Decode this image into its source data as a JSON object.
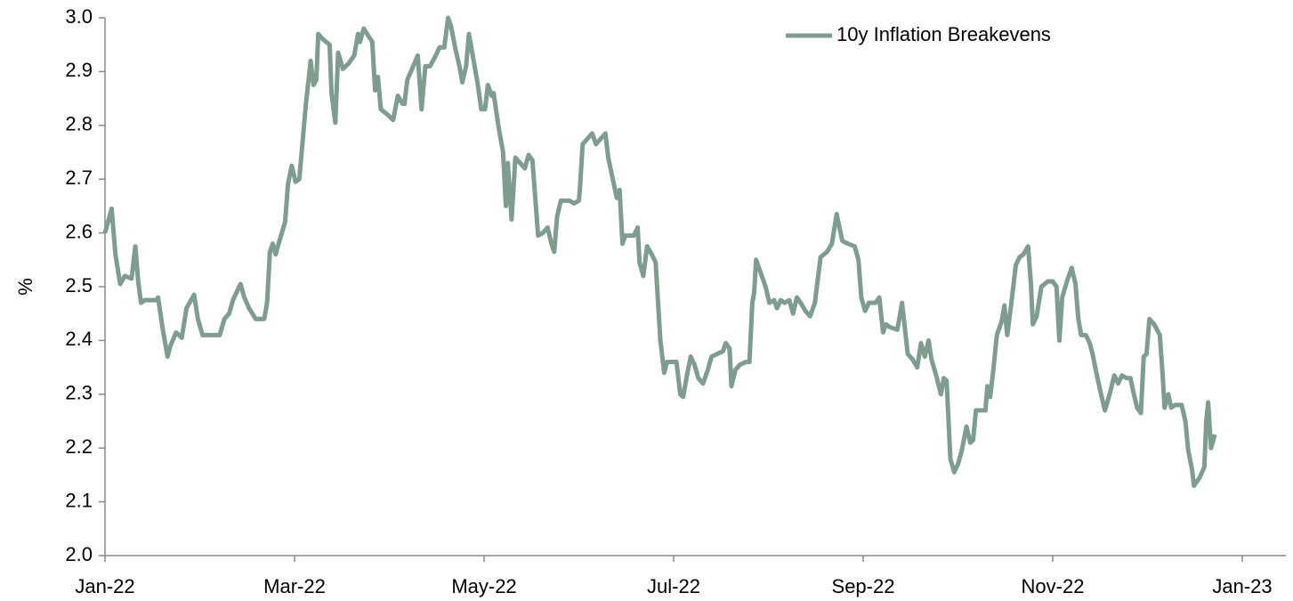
{
  "chart_data": {
    "type": "line",
    "y_label": "%",
    "xlim": [
      0,
      12.46
    ],
    "xticks": [
      {
        "value": 0,
        "label": "Jan-22"
      },
      {
        "value": 2,
        "label": "Mar-22"
      },
      {
        "value": 4,
        "label": "May-22"
      },
      {
        "value": 6,
        "label": "Jul-22"
      },
      {
        "value": 8,
        "label": "Sep-22"
      },
      {
        "value": 10,
        "label": "Nov-22"
      },
      {
        "value": 12,
        "label": "Jan-23"
      }
    ],
    "ylim": [
      2.0,
      3.0
    ],
    "yticks": [
      {
        "value": 2.0,
        "label": "2.0"
      },
      2.1,
      2.2,
      2.3,
      2.4,
      2.5,
      2.6,
      2.7,
      2.8,
      2.9,
      {
        "value": 3.0,
        "label": "3.0"
      }
    ],
    "grid": false,
    "legend": "upper right",
    "x": [
      0,
      0.07,
      0.11,
      0.16,
      0.21,
      0.28,
      0.32,
      0.35,
      0.38,
      0.42,
      0.54,
      0.56,
      0.61,
      0.66,
      0.69,
      0.75,
      0.81,
      0.86,
      0.94,
      0.98,
      1.03,
      1.1,
      1.21,
      1.26,
      1.31,
      1.35,
      1.43,
      1.47,
      1.52,
      1.59,
      1.68,
      1.71,
      1.74,
      1.77,
      1.8,
      1.84,
      1.9,
      1.93,
      1.97,
      2.01,
      2.05,
      2.08,
      2.12,
      2.17,
      2.2,
      2.23,
      2.25,
      2.3,
      2.37,
      2.39,
      2.43,
      2.46,
      2.51,
      2.57,
      2.63,
      2.67,
      2.69,
      2.73,
      2.82,
      2.85,
      2.88,
      2.91,
      2.98,
      3.04,
      3.09,
      3.14,
      3.16,
      3.19,
      3.24,
      3.3,
      3.34,
      3.38,
      3.43,
      3.49,
      3.53,
      3.58,
      3.62,
      3.65,
      3.7,
      3.74,
      3.77,
      3.81,
      3.84,
      3.88,
      3.93,
      3.97,
      4.01,
      4.04,
      4.08,
      4.1,
      4.15,
      4.2,
      4.23,
      4.25,
      4.29,
      4.33,
      4.38,
      4.43,
      4.47,
      4.51,
      4.57,
      4.62,
      4.67,
      4.71,
      4.74,
      4.77,
      4.81,
      4.9,
      4.95,
      5.0,
      5.01,
      5.04,
      5.09,
      5.14,
      5.18,
      5.23,
      5.28,
      5.31,
      5.37,
      5.4,
      5.43,
      5.46,
      5.49,
      5.58,
      5.62,
      5.64,
      5.68,
      5.72,
      5.77,
      5.81,
      5.86,
      5.9,
      5.93,
      6.03,
      6.07,
      6.1,
      6.14,
      6.18,
      6.22,
      6.26,
      6.31,
      6.36,
      6.4,
      6.46,
      6.52,
      6.55,
      6.59,
      6.61,
      6.65,
      6.7,
      6.76,
      6.8,
      6.83,
      6.85,
      6.87,
      6.92,
      6.97,
      7.01,
      7.06,
      7.09,
      7.13,
      7.17,
      7.22,
      7.26,
      7.3,
      7.34,
      7.39,
      7.44,
      7.49,
      7.55,
      7.62,
      7.67,
      7.72,
      7.78,
      7.84,
      7.91,
      7.95,
      7.98,
      8.02,
      8.06,
      8.09,
      8.13,
      8.17,
      8.21,
      8.24,
      8.28,
      8.36,
      8.41,
      8.47,
      8.52,
      8.57,
      8.61,
      8.65,
      8.69,
      8.72,
      8.77,
      8.82,
      8.85,
      8.88,
      8.92,
      8.96,
      9.0,
      9.04,
      9.09,
      9.13,
      9.16,
      9.19,
      9.25,
      9.29,
      9.31,
      9.34,
      9.37,
      9.41,
      9.46,
      9.49,
      9.52,
      9.56,
      9.61,
      9.65,
      9.69,
      9.74,
      9.77,
      9.79,
      9.83,
      9.88,
      9.95,
      10.0,
      10.04,
      10.07,
      10.1,
      10.15,
      10.2,
      10.24,
      10.27,
      10.3,
      10.35,
      10.39,
      10.42,
      10.46,
      10.51,
      10.55,
      10.6,
      10.65,
      10.69,
      10.73,
      10.78,
      10.82,
      10.85,
      10.89,
      10.93,
      10.96,
      10.99,
      11.02,
      11.07,
      11.13,
      11.16,
      11.18,
      11.22,
      11.25,
      11.29,
      11.36,
      11.4,
      11.43,
      11.47,
      11.49,
      11.55,
      11.6,
      11.62,
      11.64,
      11.67,
      11.71
    ],
    "series": [
      {
        "name": "10y Inflation Breakevens",
        "color": "#7f9c90",
        "values": [
          2.6,
          2.645,
          2.56,
          2.505,
          2.52,
          2.515,
          2.575,
          2.51,
          2.47,
          2.475,
          2.475,
          2.48,
          2.42,
          2.37,
          2.39,
          2.415,
          2.405,
          2.46,
          2.485,
          2.44,
          2.41,
          2.41,
          2.41,
          2.44,
          2.45,
          2.475,
          2.505,
          2.48,
          2.46,
          2.44,
          2.44,
          2.47,
          2.565,
          2.58,
          2.56,
          2.585,
          2.62,
          2.69,
          2.725,
          2.695,
          2.7,
          2.76,
          2.84,
          2.92,
          2.875,
          2.885,
          2.97,
          2.96,
          2.95,
          2.86,
          2.805,
          2.935,
          2.905,
          2.915,
          2.93,
          2.97,
          2.955,
          2.98,
          2.955,
          2.865,
          2.89,
          2.83,
          2.82,
          2.81,
          2.855,
          2.84,
          2.84,
          2.885,
          2.905,
          2.93,
          2.83,
          2.91,
          2.91,
          2.93,
          2.945,
          2.945,
          3.0,
          2.985,
          2.94,
          2.91,
          2.88,
          2.91,
          2.97,
          2.93,
          2.88,
          2.83,
          2.83,
          2.875,
          2.855,
          2.86,
          2.8,
          2.75,
          2.65,
          2.73,
          2.625,
          2.74,
          2.73,
          2.72,
          2.745,
          2.735,
          2.595,
          2.6,
          2.61,
          2.58,
          2.565,
          2.63,
          2.66,
          2.66,
          2.655,
          2.66,
          2.68,
          2.765,
          2.775,
          2.785,
          2.765,
          2.775,
          2.785,
          2.74,
          2.69,
          2.665,
          2.68,
          2.58,
          2.595,
          2.595,
          2.61,
          2.545,
          2.52,
          2.575,
          2.56,
          2.545,
          2.4,
          2.34,
          2.36,
          2.36,
          2.3,
          2.295,
          2.335,
          2.37,
          2.355,
          2.33,
          2.32,
          2.345,
          2.37,
          2.375,
          2.38,
          2.395,
          2.385,
          2.315,
          2.345,
          2.355,
          2.36,
          2.36,
          2.47,
          2.49,
          2.55,
          2.525,
          2.5,
          2.47,
          2.475,
          2.46,
          2.475,
          2.47,
          2.475,
          2.45,
          2.48,
          2.47,
          2.455,
          2.445,
          2.47,
          2.555,
          2.565,
          2.58,
          2.635,
          2.585,
          2.58,
          2.575,
          2.55,
          2.48,
          2.455,
          2.47,
          2.47,
          2.47,
          2.48,
          2.415,
          2.43,
          2.425,
          2.42,
          2.47,
          2.375,
          2.365,
          2.35,
          2.395,
          2.37,
          2.4,
          2.365,
          2.335,
          2.3,
          2.33,
          2.325,
          2.18,
          2.155,
          2.17,
          2.195,
          2.24,
          2.21,
          2.215,
          2.27,
          2.27,
          2.27,
          2.315,
          2.295,
          2.34,
          2.41,
          2.435,
          2.465,
          2.41,
          2.465,
          2.54,
          2.555,
          2.56,
          2.575,
          2.505,
          2.43,
          2.445,
          2.5,
          2.51,
          2.51,
          2.5,
          2.4,
          2.48,
          2.51,
          2.535,
          2.505,
          2.44,
          2.41,
          2.41,
          2.395,
          2.375,
          2.34,
          2.3,
          2.27,
          2.3,
          2.335,
          2.32,
          2.335,
          2.33,
          2.33,
          2.305,
          2.275,
          2.265,
          2.37,
          2.375,
          2.44,
          2.43,
          2.41,
          2.335,
          2.275,
          2.3,
          2.275,
          2.28,
          2.28,
          2.25,
          2.195,
          2.16,
          2.13,
          2.145,
          2.165,
          2.25,
          2.285,
          2.2,
          2.225
        ]
      }
    ]
  }
}
